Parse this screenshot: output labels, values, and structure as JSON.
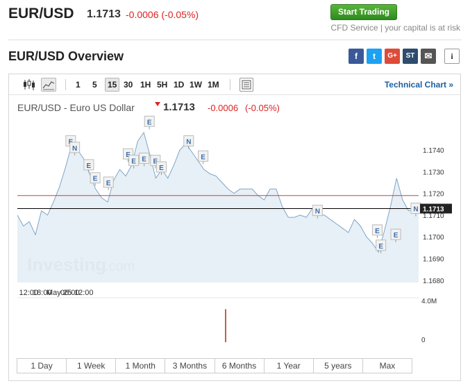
{
  "header": {
    "pair": "EUR/USD",
    "price": "1.1713",
    "change": "-0.0006 (-0.05%)",
    "start_trading": "Start Trading",
    "cfd_notice": "CFD Service | your capital is at risk"
  },
  "overview": {
    "title": "EUR/USD Overview",
    "share": {
      "facebook": "f",
      "twitter": "t",
      "google": "G+",
      "stocktwits": "ST",
      "email": "✉",
      "info": "i"
    }
  },
  "toolbar": {
    "timeframes": [
      "1",
      "5",
      "15",
      "30",
      "1H",
      "5H",
      "1D",
      "1W",
      "1M"
    ],
    "active_timeframe": "15",
    "technical_chart": "Technical Chart »"
  },
  "subheader": {
    "name": "EUR/USD - Euro US Dollar",
    "price": "1.1713",
    "change": "-0.0006",
    "percent": "(-0.05%)"
  },
  "colors": {
    "change_negative": "#dd2222",
    "area_fill": "#e3edf5",
    "area_line": "#7ea5c8",
    "prev_close_line": "#c84040",
    "current_line": "#000000",
    "volume_bar": "#c0604a",
    "start_button": "#2e8a1e",
    "link": "#1b5fa0"
  },
  "chart_data": {
    "type": "area",
    "x_ticks": [
      "12:00",
      "18:00",
      "May 25",
      "06:00",
      "12:00"
    ],
    "y_ticks": [
      "1.1740",
      "1.1730",
      "1.1720",
      "1.1710",
      "1.1700",
      "1.1690",
      "1.1680"
    ],
    "ylim": [
      1.1679,
      1.1755
    ],
    "xlim": [
      0,
      100
    ],
    "x": [
      0,
      1.5,
      3,
      4.5,
      6,
      7.5,
      9,
      10.5,
      12,
      13.5,
      15,
      16.5,
      18,
      19.5,
      21,
      22.5,
      24,
      25.5,
      27,
      28.5,
      30,
      31.5,
      33,
      34.5,
      36,
      37.5,
      39,
      40.5,
      42,
      43.5,
      45,
      46.5,
      48,
      49.5,
      51,
      52.5,
      54,
      55.5,
      57,
      58.5,
      60,
      61.5,
      63,
      64.5,
      66,
      67.5,
      69,
      70.5,
      72,
      73.5,
      75,
      76.5,
      78,
      79.5,
      81,
      82.5,
      84,
      85.5,
      87,
      88.5,
      90,
      91.5,
      93,
      94.5,
      96,
      97.5,
      99,
      100
    ],
    "values": [
      1.171,
      1.1705,
      1.1707,
      1.1701,
      1.1712,
      1.171,
      1.1716,
      1.1723,
      1.1732,
      1.1742,
      1.174,
      1.1736,
      1.1729,
      1.1722,
      1.1718,
      1.1716,
      1.1726,
      1.1731,
      1.1728,
      1.1733,
      1.1744,
      1.1748,
      1.1738,
      1.1727,
      1.1731,
      1.1727,
      1.1733,
      1.174,
      1.1743,
      1.1739,
      1.1735,
      1.1731,
      1.1729,
      1.1728,
      1.1725,
      1.1722,
      1.172,
      1.1722,
      1.1722,
      1.1722,
      1.1719,
      1.1717,
      1.1722,
      1.1722,
      1.1714,
      1.1709,
      1.1709,
      1.171,
      1.1709,
      1.1713,
      1.171,
      1.171,
      1.1708,
      1.1706,
      1.1704,
      1.1702,
      1.1708,
      1.1705,
      1.17,
      1.1697,
      1.1693,
      1.1703,
      1.1714,
      1.1727,
      1.1717,
      1.1712,
      1.1713,
      1.1713
    ],
    "prev_close": 1.1719,
    "current_price": 1.1713,
    "current_label": "1.1713",
    "event_markers": [
      {
        "label": "E",
        "x": 13.3,
        "y": 1.1744
      },
      {
        "label": "N",
        "x": 14.3,
        "y": 1.1741
      },
      {
        "label": "E",
        "x": 17.8,
        "y": 1.1733
      },
      {
        "label": "E",
        "x": 19.4,
        "y": 1.1727
      },
      {
        "label": "E",
        "x": 22.7,
        "y": 1.1725
      },
      {
        "label": "E",
        "x": 27.6,
        "y": 1.1738
      },
      {
        "label": "E",
        "x": 29.0,
        "y": 1.1735
      },
      {
        "label": "E",
        "x": 31.6,
        "y": 1.1736
      },
      {
        "label": "E",
        "x": 32.9,
        "y": 1.1753
      },
      {
        "label": "E",
        "x": 34.4,
        "y": 1.1735
      },
      {
        "label": "E",
        "x": 35.9,
        "y": 1.1732
      },
      {
        "label": "N",
        "x": 42.7,
        "y": 1.1744
      },
      {
        "label": "E",
        "x": 46.3,
        "y": 1.1737
      },
      {
        "label": "N",
        "x": 74.8,
        "y": 1.1712
      },
      {
        "label": "E",
        "x": 89.7,
        "y": 1.1703
      },
      {
        "label": "E",
        "x": 90.6,
        "y": 1.1696
      },
      {
        "label": "E",
        "x": 94.3,
        "y": 1.1701
      },
      {
        "label": "N",
        "x": 99.3,
        "y": 1.1713
      }
    ],
    "volume_label_top": "4.0M",
    "volume_label_bottom": "0",
    "volume_bar": {
      "x": 51.9,
      "value_fraction": 0.85
    },
    "watermark": "Investing.com"
  },
  "ranges": [
    "1 Day",
    "1 Week",
    "1 Month",
    "3 Months",
    "6 Months",
    "1 Year",
    "5 years",
    "Max"
  ]
}
